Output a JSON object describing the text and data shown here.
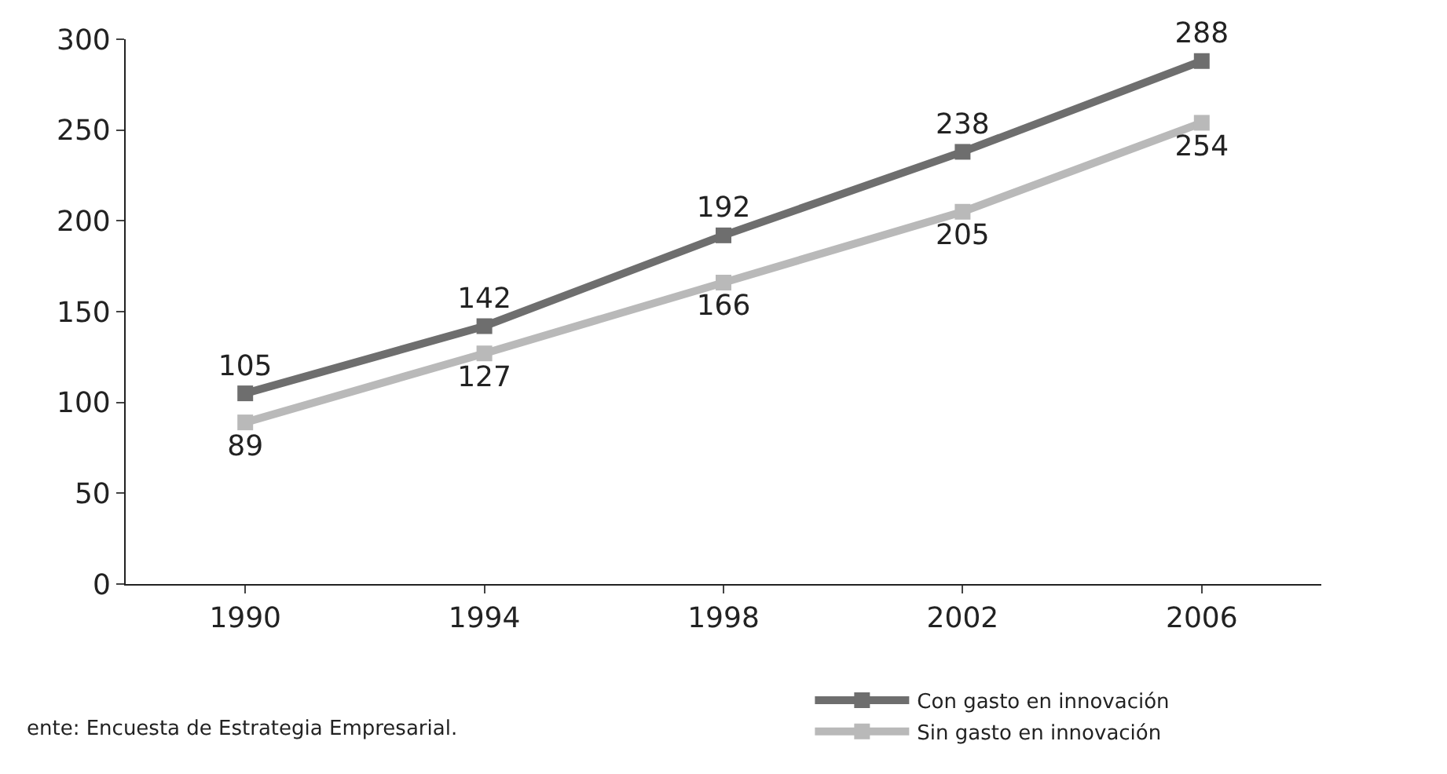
{
  "chart_data": {
    "type": "line",
    "categories": [
      "1990",
      "1994",
      "1998",
      "2002",
      "2006"
    ],
    "series": [
      {
        "name": "Con gasto en innovación",
        "color": "#6e6e6e",
        "values": [
          105,
          142,
          192,
          238,
          288
        ]
      },
      {
        "name": "Sin gasto en innovación",
        "color": "#b9b9b9",
        "values": [
          89,
          127,
          166,
          205,
          254
        ]
      }
    ],
    "ylim": [
      0,
      300
    ],
    "yticks": [
      0,
      50,
      100,
      150,
      200,
      250,
      300
    ],
    "data_labels": true,
    "marker": "square",
    "line_style": "solid",
    "legend": "bottom right",
    "annotations": [
      "ente: Encuesta de Estrategia Empresarial."
    ]
  }
}
